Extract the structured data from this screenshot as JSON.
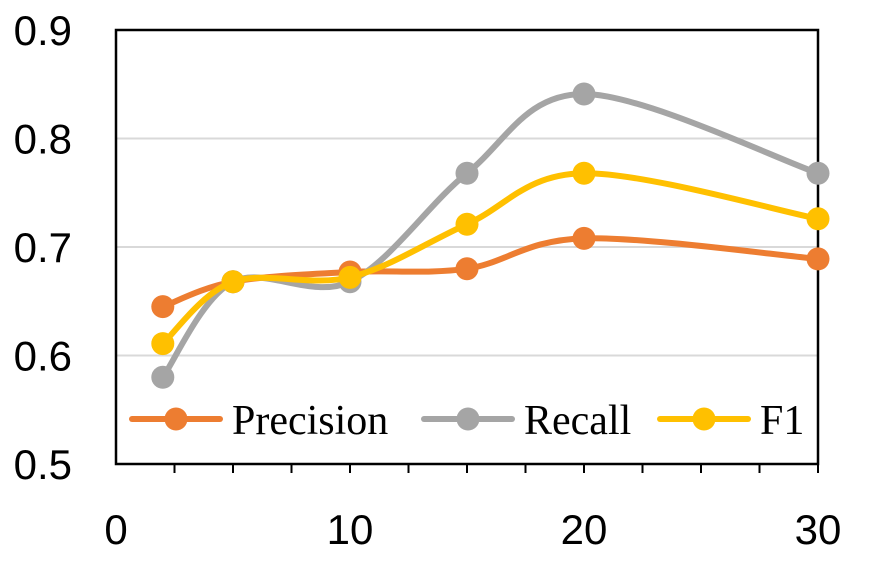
{
  "chart_data": {
    "type": "line",
    "title": "",
    "xlabel": "",
    "ylabel": "",
    "x": [
      2,
      5,
      10,
      15,
      20,
      30
    ],
    "xlim": [
      0,
      30
    ],
    "ylim": [
      0.5,
      0.9
    ],
    "xticks": [
      0,
      10,
      20,
      30
    ],
    "xtick_labels": [
      "0",
      "10",
      "20",
      "30"
    ],
    "yticks": [
      0.5,
      0.6,
      0.7,
      0.8,
      0.9
    ],
    "ytick_labels": [
      "0.5",
      "0.6",
      "0.7",
      "0.8",
      "0.9"
    ],
    "grid": true,
    "legend_position": "bottom-inside",
    "series": [
      {
        "name": "Precision",
        "color": "#ED7D31",
        "values": [
          0.645,
          0.668,
          0.677,
          0.68,
          0.708,
          0.689
        ]
      },
      {
        "name": "Recall",
        "color": "#A5A5A5",
        "values": [
          0.58,
          0.668,
          0.668,
          0.768,
          0.841,
          0.768
        ]
      },
      {
        "name": "F1",
        "color": "#FFC000",
        "values": [
          0.611,
          0.668,
          0.672,
          0.721,
          0.768,
          0.726
        ]
      }
    ]
  }
}
